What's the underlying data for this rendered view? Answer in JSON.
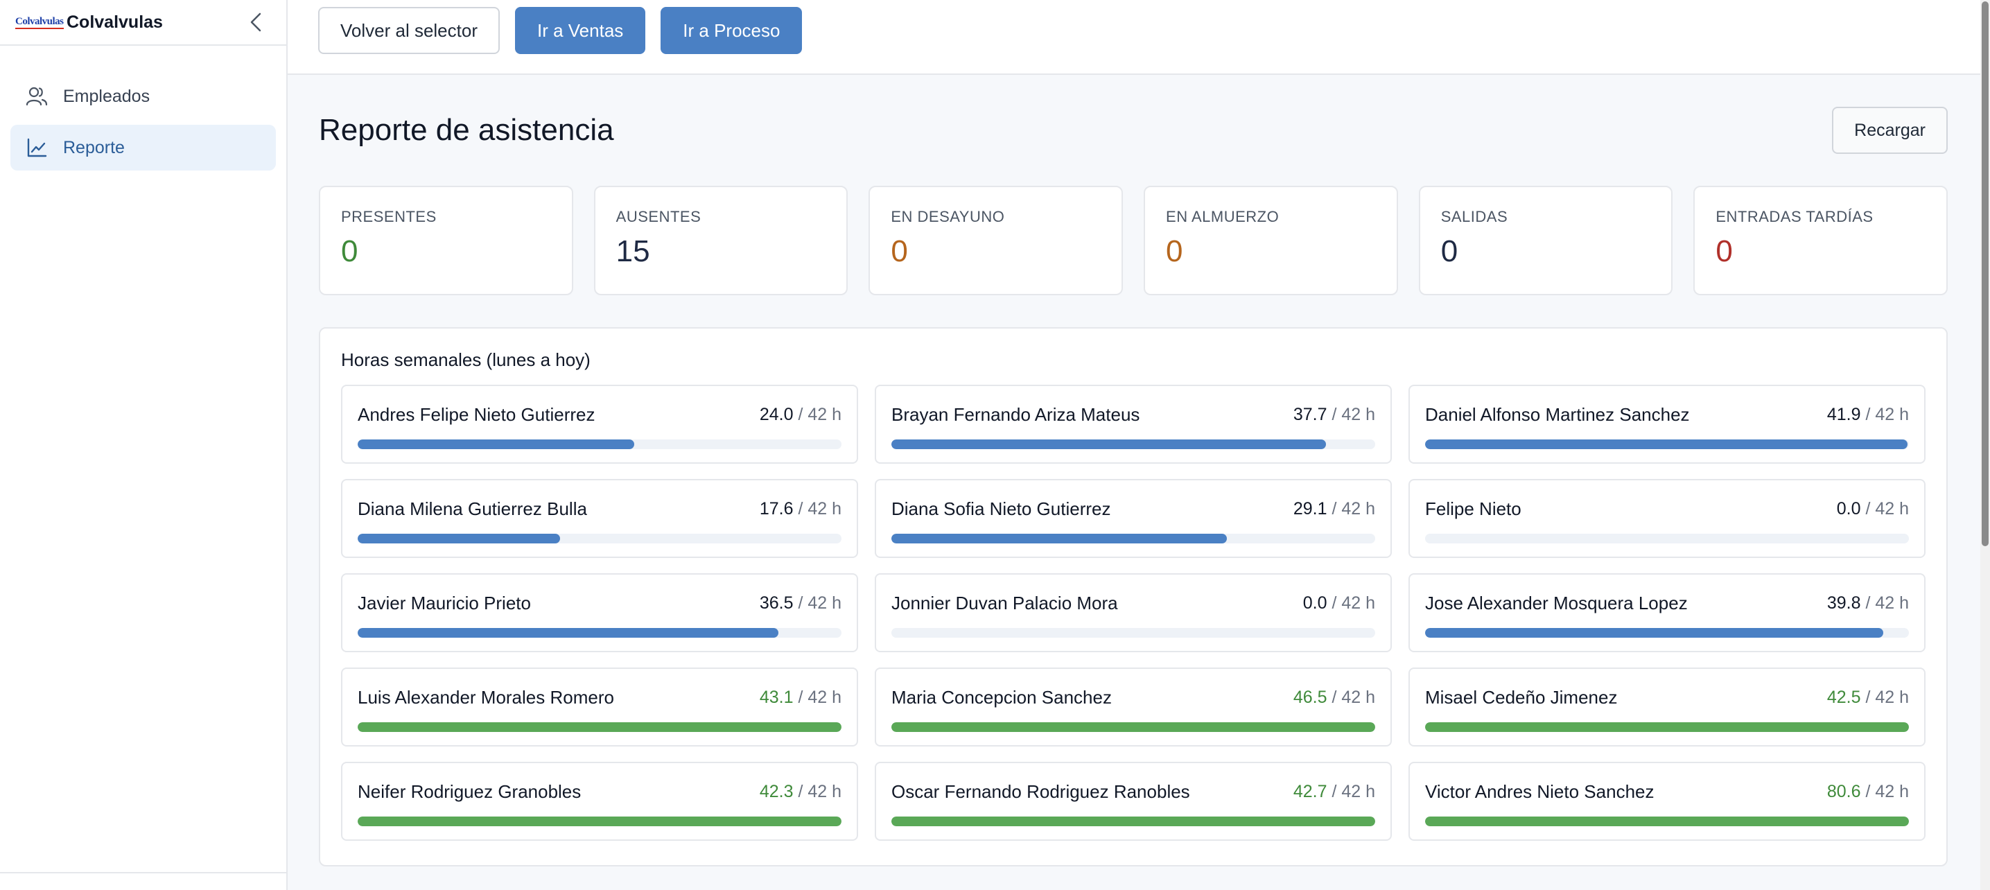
{
  "sidebar": {
    "logo_text": "Colvalvulas",
    "brand_name": "Colvalvulas",
    "items": [
      {
        "label": "Empleados",
        "icon": "users-icon"
      },
      {
        "label": "Reporte",
        "icon": "chart-line-icon"
      }
    ]
  },
  "topbar": {
    "back_label": "Volver al selector",
    "ventas_label": "Ir a Ventas",
    "proceso_label": "Ir a Proceso"
  },
  "page": {
    "title": "Reporte de asistencia",
    "reload_label": "Recargar"
  },
  "stats": [
    {
      "label": "PRESENTES",
      "value": "0",
      "color": "#3f8a3a"
    },
    {
      "label": "AUSENTES",
      "value": "15",
      "color": "#1f2a44"
    },
    {
      "label": "EN DESAYUNO",
      "value": "0",
      "color": "#b5651d"
    },
    {
      "label": "EN ALMUERZO",
      "value": "0",
      "color": "#b5651d"
    },
    {
      "label": "SALIDAS",
      "value": "0",
      "color": "#1f2a44"
    },
    {
      "label": "ENTRADAS TARDÍAS",
      "value": "0",
      "color": "#b0302a"
    }
  ],
  "weekly": {
    "title": "Horas semanales (lunes a hoy)",
    "target_label": "/ 42 h",
    "target_hours": 42,
    "colors": {
      "normal": "#4a80c4",
      "over": "#5aa857"
    },
    "employees": [
      {
        "name": "Andres Felipe Nieto Gutierrez",
        "hours": "24.0"
      },
      {
        "name": "Brayan Fernando Ariza Mateus",
        "hours": "37.7"
      },
      {
        "name": "Daniel Alfonso Martinez Sanchez",
        "hours": "41.9"
      },
      {
        "name": "Diana Milena Gutierrez Bulla",
        "hours": "17.6"
      },
      {
        "name": "Diana Sofia Nieto Gutierrez",
        "hours": "29.1"
      },
      {
        "name": "Felipe Nieto",
        "hours": "0.0"
      },
      {
        "name": "Javier Mauricio Prieto",
        "hours": "36.5"
      },
      {
        "name": "Jonnier Duvan Palacio Mora",
        "hours": "0.0"
      },
      {
        "name": "Jose Alexander Mosquera Lopez",
        "hours": "39.8"
      },
      {
        "name": "Luis Alexander Morales Romero",
        "hours": "43.1"
      },
      {
        "name": "Maria Concepcion Sanchez",
        "hours": "46.5"
      },
      {
        "name": "Misael Cedeño Jimenez",
        "hours": "42.5"
      },
      {
        "name": "Neifer Rodriguez Granobles",
        "hours": "42.3"
      },
      {
        "name": "Oscar Fernando Rodriguez Ranobles",
        "hours": "42.7"
      },
      {
        "name": "Victor Andres Nieto Sanchez",
        "hours": "80.6"
      }
    ]
  }
}
